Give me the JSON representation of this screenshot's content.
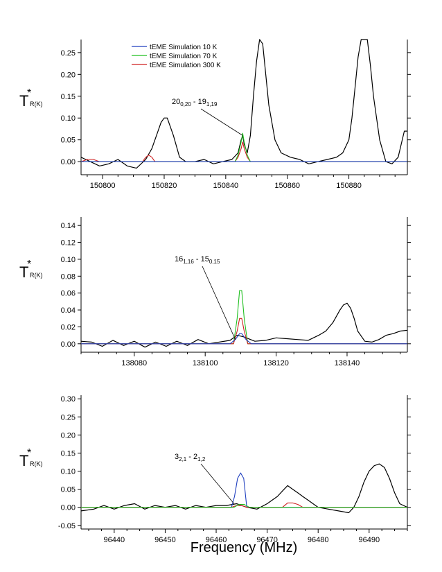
{
  "figure": {
    "xlabel": "Frequency (MHz)",
    "ylabel_main": "T",
    "ylabel_star": "*",
    "ylabel_sub": "R(K)"
  },
  "legend": [
    {
      "label": "tEME Simulation 10 K",
      "color": "#1f3fbf"
    },
    {
      "label": "tEME Simulation 70 K",
      "color": "#1fbf1f"
    },
    {
      "label": "tEME Simulation 300 K",
      "color": "#cf1f1f"
    }
  ],
  "colors": {
    "observed": "#000000",
    "sim10": "#1f3fbf",
    "sim70": "#1fbf1f",
    "sim300": "#cf1f1f"
  },
  "chart_data": [
    {
      "type": "line",
      "panel": "top",
      "xlim": [
        150793,
        150899
      ],
      "ylim": [
        -0.03,
        0.28
      ],
      "xticks": [
        150800,
        150820,
        150840,
        150860,
        150880
      ],
      "yticks": [
        0.0,
        0.05,
        0.1,
        0.15,
        0.2,
        0.25
      ],
      "ytick_labels": [
        "0.00",
        "0.05",
        "0.10",
        "0.15",
        "0.20",
        "0.25"
      ],
      "annotation": {
        "main1": "20",
        "sub1": "0,20",
        "sep": " - ",
        "main2": "19",
        "sub2": "1,19",
        "target_x": 150845.5,
        "target_y": 0.06
      },
      "series": [
        {
          "name": "observed",
          "color": "#000000",
          "x": [
            150793,
            150796,
            150799,
            150802,
            150805,
            150808,
            150811,
            150814,
            150816,
            150818,
            150819,
            150820,
            150821,
            150823,
            150825,
            150827,
            150830,
            150833,
            150836,
            150839,
            150842,
            150844,
            150845,
            150845.5,
            150846,
            150847,
            150848,
            150849,
            150850,
            150851,
            150852,
            150853,
            150854,
            150856,
            150858,
            150861,
            150864,
            150867,
            150870,
            150873,
            150876,
            150878,
            150880,
            150881,
            150882,
            150883,
            150884,
            150885,
            150886,
            150887,
            150888,
            150890,
            150892,
            150894,
            150896,
            150898,
            150899
          ],
          "y": [
            0.01,
            0.0,
            -0.01,
            -0.005,
            0.005,
            -0.01,
            -0.015,
            0.005,
            0.03,
            0.07,
            0.09,
            0.1,
            0.1,
            0.06,
            0.01,
            0.0,
            0.0,
            0.005,
            -0.005,
            0.0,
            0.005,
            0.02,
            0.05,
            0.06,
            0.04,
            0.02,
            0.06,
            0.15,
            0.23,
            0.28,
            0.27,
            0.2,
            0.13,
            0.05,
            0.02,
            0.01,
            0.005,
            -0.005,
            0.0,
            0.005,
            0.01,
            0.02,
            0.05,
            0.1,
            0.17,
            0.24,
            0.28,
            0.28,
            0.28,
            0.22,
            0.15,
            0.05,
            0.0,
            -0.005,
            0.01,
            0.07,
            0.07
          ]
        },
        {
          "name": "tEME Simulation 300 K",
          "color": "#cf1f1f",
          "x": [
            150793,
            150795,
            150797,
            150799,
            150813,
            150814,
            150815,
            150816,
            150817,
            150843,
            150844,
            150845,
            150845.5,
            150846,
            150847,
            150848,
            150899
          ],
          "y": [
            0.0,
            0.005,
            0.005,
            0.0,
            0.0,
            0.01,
            0.015,
            0.01,
            0.0,
            0.0,
            0.01,
            0.03,
            0.045,
            0.03,
            0.01,
            0.0,
            0.0
          ]
        },
        {
          "name": "tEME Simulation 70 K",
          "color": "#1fbf1f",
          "x": [
            150793,
            150843,
            150844,
            150845,
            150845.5,
            150846,
            150847,
            150848,
            150899
          ],
          "y": [
            0.0,
            0.0,
            0.015,
            0.045,
            0.065,
            0.045,
            0.015,
            0.0,
            0.0
          ]
        },
        {
          "name": "tEME Simulation 10 K",
          "color": "#1f3fbf",
          "x": [
            150793,
            150899
          ],
          "y": [
            0.0,
            0.0
          ]
        }
      ]
    },
    {
      "type": "line",
      "panel": "middle",
      "xlim": [
        138065,
        138157
      ],
      "ylim": [
        -0.01,
        0.15
      ],
      "xticks": [
        138080,
        138100,
        138120,
        138140
      ],
      "yticks": [
        0.0,
        0.02,
        0.04,
        0.06,
        0.08,
        0.1,
        0.12,
        0.14
      ],
      "ytick_labels": [
        "0.00",
        "0.02",
        "0.04",
        "0.06",
        "0.08",
        "0.10",
        "0.12",
        "0.14"
      ],
      "annotation": {
        "main1": "16",
        "sub1": "1,16",
        "sep": " - ",
        "main2": "15",
        "sub2": "0,15",
        "target_x": 138108.5,
        "target_y": 0.005
      },
      "series": [
        {
          "name": "observed",
          "color": "#000000",
          "x": [
            138065,
            138068,
            138071,
            138074,
            138077,
            138080,
            138083,
            138086,
            138089,
            138092,
            138095,
            138098,
            138101,
            138104,
            138107,
            138109,
            138111,
            138114,
            138117,
            138120,
            138123,
            138126,
            138129,
            138132,
            138134,
            138136,
            138138,
            138139,
            138140,
            138141,
            138142,
            138143,
            138145,
            138147,
            138149,
            138151,
            138153,
            138155,
            138157
          ],
          "y": [
            0.003,
            0.002,
            -0.003,
            0.004,
            -0.002,
            0.003,
            -0.004,
            0.002,
            -0.003,
            0.003,
            -0.002,
            0.005,
            0.0,
            0.002,
            0.004,
            0.01,
            0.008,
            0.003,
            0.004,
            0.007,
            0.006,
            0.005,
            0.004,
            0.01,
            0.015,
            0.025,
            0.04,
            0.046,
            0.048,
            0.042,
            0.03,
            0.015,
            0.003,
            0.002,
            0.005,
            0.01,
            0.012,
            0.015,
            0.016
          ]
        },
        {
          "name": "tEME Simulation 70 K",
          "color": "#1fbf1f",
          "x": [
            138065,
            138108,
            138109,
            138109.7,
            138110.3,
            138111,
            138112,
            138157
          ],
          "y": [
            0.0,
            0.0,
            0.03,
            0.063,
            0.063,
            0.03,
            0.0,
            0.0
          ]
        },
        {
          "name": "tEME Simulation 300 K",
          "color": "#cf1f1f",
          "x": [
            138065,
            138108,
            138109,
            138109.7,
            138110.3,
            138111,
            138112,
            138157
          ],
          "y": [
            0.0,
            0.0,
            0.015,
            0.03,
            0.03,
            0.015,
            0.0,
            0.0
          ]
        },
        {
          "name": "tEME Simulation 10 K",
          "color": "#1f3fbf",
          "x": [
            138065,
            138107,
            138108.5,
            138109.7,
            138110.3,
            138111.5,
            138113,
            138157
          ],
          "y": [
            0.0,
            0.0,
            0.005,
            0.012,
            0.012,
            0.005,
            0.0,
            0.0
          ]
        }
      ]
    },
    {
      "type": "line",
      "panel": "bottom",
      "xlim": [
        96433.5,
        96497.5
      ],
      "ylim": [
        -0.06,
        0.31
      ],
      "xticks": [
        96440,
        96450,
        96460,
        96470,
        96480,
        96490
      ],
      "yticks": [
        -0.05,
        0.0,
        0.05,
        0.1,
        0.15,
        0.2,
        0.25,
        0.3
      ],
      "ytick_labels": [
        "-0.05",
        "0.00",
        "0.05",
        "0.10",
        "0.15",
        "0.20",
        "0.25",
        "0.30"
      ],
      "annotation": {
        "main1": "3",
        "sub1": "2,1",
        "sep": " - ",
        "main2": "2",
        "sub2": "1,2",
        "target_x": 96463.5,
        "target_y": 0.01
      },
      "series": [
        {
          "name": "observed",
          "color": "#000000",
          "x": [
            96433.5,
            96436,
            96438,
            96440,
            96442,
            96444,
            96446,
            96448,
            96450,
            96452,
            96454,
            96456,
            96458,
            96460,
            96462,
            96464,
            96466,
            96468,
            96470,
            96471,
            96472,
            96473,
            96474,
            96475,
            96476,
            96477,
            96478,
            96480,
            96482,
            96484,
            96486,
            96487,
            96488,
            96489,
            96490,
            96491,
            96492,
            96493,
            96494,
            96495,
            96496,
            96497.5
          ],
          "y": [
            -0.01,
            -0.005,
            0.005,
            -0.005,
            0.005,
            0.01,
            -0.005,
            0.005,
            0.0,
            0.005,
            -0.005,
            0.005,
            0.0,
            0.005,
            0.005,
            0.01,
            0.0,
            -0.005,
            0.01,
            0.02,
            0.03,
            0.045,
            0.06,
            0.05,
            0.04,
            0.03,
            0.02,
            0.0,
            -0.005,
            -0.01,
            -0.015,
            0.0,
            0.03,
            0.07,
            0.1,
            0.115,
            0.12,
            0.11,
            0.08,
            0.04,
            0.01,
            0.0
          ]
        },
        {
          "name": "tEME Simulation 10 K",
          "color": "#1f3fbf",
          "x": [
            96433.5,
            96463,
            96463.6,
            96464.2,
            96464.8,
            96465.4,
            96466,
            96497.5
          ],
          "y": [
            0.0,
            0.0,
            0.03,
            0.08,
            0.095,
            0.08,
            0.0,
            0.0
          ]
        },
        {
          "name": "tEME Simulation 300 K",
          "color": "#cf1f1f",
          "x": [
            96433.5,
            96463,
            96464,
            96465,
            96466,
            96473,
            96474,
            96475,
            96476,
            96477,
            96497.5
          ],
          "y": [
            0.0,
            0.0,
            0.005,
            0.005,
            0.0,
            0.0,
            0.012,
            0.012,
            0.008,
            0.0,
            0.0
          ]
        },
        {
          "name": "tEME Simulation 70 K",
          "color": "#1fbf1f",
          "x": [
            96433.5,
            96463.5,
            96464.5,
            96465.5,
            96466.5,
            96497.5
          ],
          "y": [
            0.0,
            0.0,
            0.008,
            0.008,
            0.0,
            0.0
          ]
        }
      ]
    }
  ]
}
